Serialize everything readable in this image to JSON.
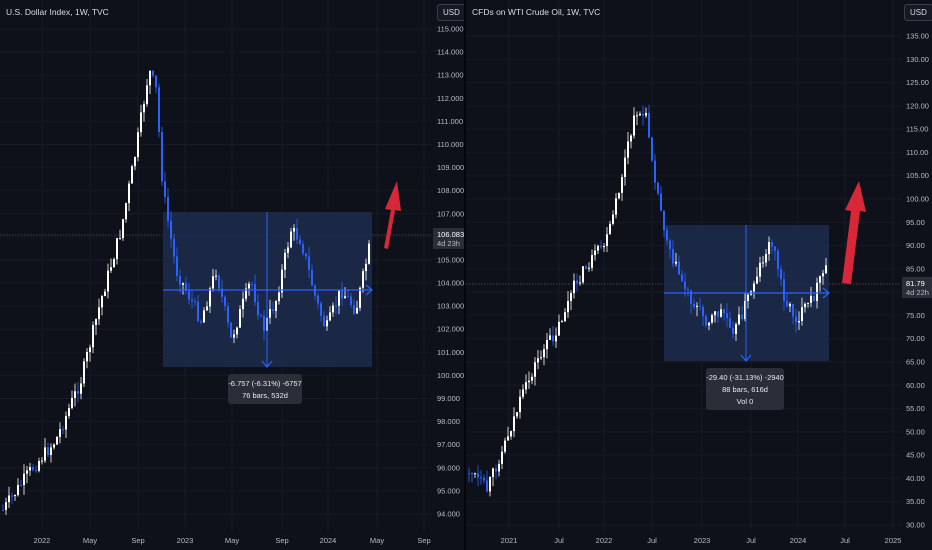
{
  "left": {
    "title": "U.S. Dollar Index, 1W, TVC",
    "currency": "USD",
    "y_ticks": [
      "115.000",
      "114.000",
      "113.000",
      "112.000",
      "111.000",
      "110.000",
      "109.000",
      "108.000",
      "107.000",
      "106.000",
      "105.000",
      "104.000",
      "103.000",
      "102.000",
      "101.000",
      "100.000",
      "99.000",
      "98.000",
      "97.000",
      "96.000",
      "95.000",
      "94.000"
    ],
    "x_ticks": [
      "2022",
      "May",
      "Sep",
      "2023",
      "May",
      "Sep",
      "2024",
      "May",
      "Sep"
    ],
    "price_tag": {
      "value": "106.083",
      "countdown": "4d 23h"
    },
    "measure": {
      "line1": "-6.757 (-6.31%) -6757",
      "line2": "76 bars, 532d"
    }
  },
  "right": {
    "title": "CFDs on WTI Crude Oil, 1W, TVC",
    "currency": "USD",
    "y_ticks": [
      "135.00",
      "130.00",
      "125.00",
      "120.00",
      "115.00",
      "110.00",
      "105.00",
      "100.00",
      "95.00",
      "90.00",
      "85.00",
      "80.00",
      "75.00",
      "70.00",
      "65.00",
      "60.00",
      "55.00",
      "50.00",
      "45.00",
      "40.00",
      "35.00",
      "30.00"
    ],
    "x_ticks": [
      "2021",
      "Jul",
      "2022",
      "Jul",
      "2023",
      "Jul",
      "2024",
      "Jul",
      "2025"
    ],
    "price_tag": {
      "value": "81.79",
      "countdown": "4d 22h"
    },
    "measure": {
      "line1": "-29.40 (-31.13%) -2940",
      "line2": "88 bars, 616d",
      "line3": "Vol 0"
    }
  },
  "colors": {
    "bg": "#0f111a",
    "bull": "#ffffff",
    "bear": "#2962ff",
    "box": "#1e2f55",
    "measure": "#2962ff",
    "arrow": "#d9273a"
  }
}
